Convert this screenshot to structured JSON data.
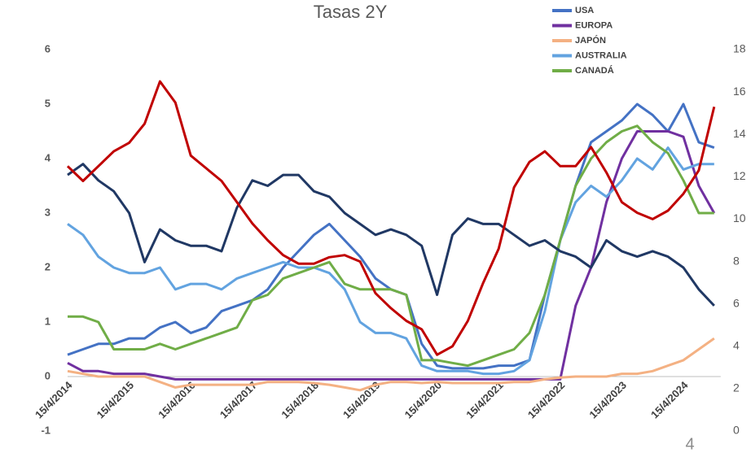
{
  "chart_data": {
    "type": "line",
    "title": "Tasas 2Y",
    "page_number": "4",
    "categories": [
      "15/4/2014",
      null,
      null,
      null,
      "15/4/2015",
      null,
      null,
      null,
      "15/4/2016",
      null,
      null,
      null,
      "15/4/2017",
      null,
      null,
      null,
      "15/4/2018",
      null,
      null,
      null,
      "15/4/2019",
      null,
      null,
      null,
      "15/4/2020",
      null,
      null,
      null,
      "15/4/2021",
      null,
      null,
      null,
      "15/4/2022",
      null,
      null,
      null,
      "15/4/2023",
      null,
      null,
      null,
      "15/4/2024",
      null,
      null
    ],
    "ylim": [
      -1,
      6
    ],
    "yticks": [
      -1,
      0,
      1,
      2,
      3,
      4,
      5,
      6
    ],
    "y2lim": [
      0,
      18
    ],
    "y2ticks": [
      0,
      2,
      4,
      6,
      8,
      10,
      12,
      14,
      16,
      18
    ],
    "grid": false,
    "series": [
      {
        "name": "USA",
        "color": "#4472c4",
        "values": [
          0.4,
          0.5,
          0.6,
          0.6,
          0.7,
          0.7,
          0.9,
          1.0,
          0.8,
          0.9,
          1.2,
          1.3,
          1.4,
          1.6,
          2.0,
          2.3,
          2.6,
          2.8,
          2.5,
          2.2,
          1.8,
          1.6,
          1.5,
          0.6,
          0.2,
          0.15,
          0.15,
          0.15,
          0.2,
          0.2,
          0.3,
          1.5,
          2.5,
          3.5,
          4.3,
          4.5,
          4.7,
          5.0,
          4.8,
          4.5,
          5.0,
          4.3,
          4.2
        ]
      },
      {
        "name": "EUROPA",
        "color": "#7030a0",
        "values": [
          0.25,
          0.1,
          0.1,
          0.05,
          0.05,
          0.05,
          0.0,
          -0.05,
          -0.05,
          -0.05,
          -0.05,
          -0.05,
          -0.05,
          -0.05,
          -0.05,
          -0.05,
          -0.05,
          -0.05,
          -0.05,
          -0.05,
          -0.05,
          -0.05,
          -0.05,
          -0.05,
          -0.05,
          -0.05,
          -0.05,
          -0.05,
          -0.05,
          -0.05,
          -0.05,
          -0.05,
          -0.05,
          1.3,
          2.0,
          3.2,
          4.0,
          4.5,
          4.5,
          4.5,
          4.4,
          3.5,
          3.0
        ]
      },
      {
        "name": "JAPÓN",
        "color": "#f4b183",
        "values": [
          0.1,
          0.05,
          0.0,
          0.0,
          0.0,
          0.0,
          -0.1,
          -0.2,
          -0.15,
          -0.15,
          -0.15,
          -0.15,
          -0.15,
          -0.1,
          -0.1,
          -0.1,
          -0.12,
          -0.15,
          -0.2,
          -0.25,
          -0.15,
          -0.1,
          -0.1,
          -0.12,
          -0.1,
          -0.12,
          -0.12,
          -0.12,
          -0.12,
          -0.1,
          -0.1,
          -0.05,
          -0.02,
          0.0,
          0.0,
          0.0,
          0.05,
          0.05,
          0.1,
          0.2,
          0.3,
          0.5,
          0.7
        ]
      },
      {
        "name": "AUSTRALIA",
        "color": "#62a3e0",
        "values": [
          2.8,
          2.6,
          2.2,
          2.0,
          1.9,
          1.9,
          2.0,
          1.6,
          1.7,
          1.7,
          1.6,
          1.8,
          1.9,
          2.0,
          2.1,
          2.0,
          2.0,
          1.9,
          1.6,
          1.0,
          0.8,
          0.8,
          0.7,
          0.2,
          0.1,
          0.1,
          0.1,
          0.05,
          0.05,
          0.1,
          0.3,
          1.2,
          2.5,
          3.2,
          3.5,
          3.3,
          3.6,
          4.0,
          3.8,
          4.2,
          3.8,
          3.9,
          3.9
        ]
      },
      {
        "name": "CANADÁ",
        "color": "#70ad47",
        "values": [
          1.1,
          1.1,
          1.0,
          0.5,
          0.5,
          0.5,
          0.6,
          0.5,
          0.6,
          0.7,
          0.8,
          0.9,
          1.4,
          1.5,
          1.8,
          1.9,
          2.0,
          2.1,
          1.7,
          1.6,
          1.6,
          1.6,
          1.5,
          0.3,
          0.3,
          0.25,
          0.2,
          0.3,
          0.4,
          0.5,
          0.8,
          1.5,
          2.5,
          3.5,
          4.0,
          4.3,
          4.5,
          4.6,
          4.3,
          4.1,
          3.6,
          3.0,
          3.0
        ]
      },
      {
        "color": "#203864",
        "values": [
          3.7,
          3.9,
          3.6,
          3.4,
          3.0,
          2.1,
          2.7,
          2.5,
          2.4,
          2.4,
          2.3,
          3.1,
          3.6,
          3.5,
          3.7,
          3.7,
          3.4,
          3.3,
          3.0,
          2.8,
          2.6,
          2.7,
          2.6,
          2.4,
          1.5,
          2.6,
          2.9,
          2.8,
          2.8,
          2.6,
          2.4,
          2.5,
          2.3,
          2.2,
          2.0,
          2.5,
          2.3,
          2.2,
          2.3,
          2.2,
          2.0,
          1.6,
          1.3
        ]
      },
      {
        "color": "#c00000",
        "axis": "y2",
        "values": [
          12.5,
          11.8,
          12.5,
          13.2,
          13.6,
          14.5,
          16.5,
          15.5,
          13.0,
          12.4,
          11.8,
          10.8,
          9.8,
          9.0,
          8.3,
          7.9,
          7.9,
          8.2,
          8.3,
          8.0,
          6.5,
          5.8,
          5.2,
          4.8,
          3.6,
          4.0,
          5.2,
          7.0,
          8.6,
          11.5,
          12.7,
          13.2,
          12.5,
          12.5,
          13.4,
          12.2,
          10.8,
          10.3,
          10.0,
          10.4,
          11.2,
          12.3,
          15.3
        ]
      }
    ]
  }
}
